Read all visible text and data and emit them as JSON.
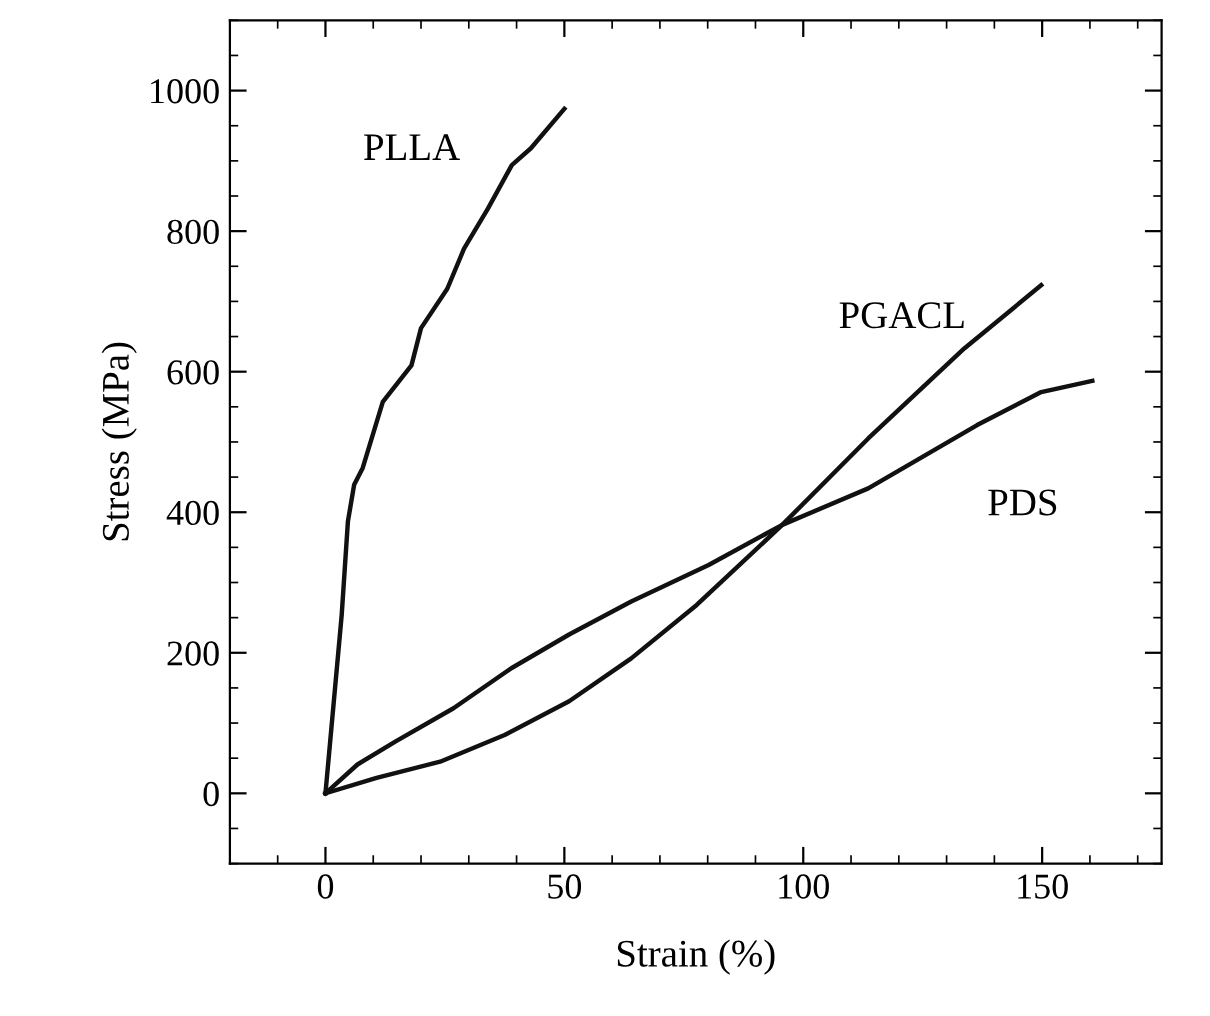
{
  "chart_data": {
    "type": "line",
    "xlabel": "Strain (%)",
    "ylabel": "Stress (MPa)",
    "xlim": [
      -20,
      175
    ],
    "xticks": [
      0,
      50,
      100,
      150
    ],
    "ylim": [
      -100,
      1100
    ],
    "yticks": [
      0,
      200,
      400,
      600,
      800,
      1000
    ],
    "grid": false,
    "legend": false,
    "marker": "none",
    "line_style": "solid",
    "series": [
      {
        "name": "PLLA",
        "color": "#111111",
        "x": [
          0,
          3.4,
          4.7,
          6,
          7.8,
          12,
          18,
          20,
          25.5,
          29,
          34,
          39,
          43,
          50
        ],
        "values": [
          0,
          254,
          387,
          439,
          463,
          557,
          609,
          662,
          718,
          775,
          832,
          894,
          918,
          974
        ]
      },
      {
        "name": "PGACL",
        "color": "#111111",
        "x": [
          0,
          10.7,
          24,
          37.5,
          51,
          64,
          77.7,
          95.6,
          113.6,
          133.7,
          149.8
        ],
        "values": [
          0,
          22,
          45,
          83,
          131,
          192,
          268,
          382,
          505,
          633,
          723
        ]
      },
      {
        "name": "PDS",
        "color": "#111111",
        "x": [
          0,
          6.7,
          14.7,
          26.8,
          38.9,
          51,
          64,
          80.2,
          95.6,
          113.6,
          136.4,
          149.8,
          160.5
        ],
        "values": [
          0,
          41,
          74,
          121,
          178,
          226,
          273,
          325,
          382,
          434,
          524,
          571,
          587
        ]
      }
    ]
  }
}
